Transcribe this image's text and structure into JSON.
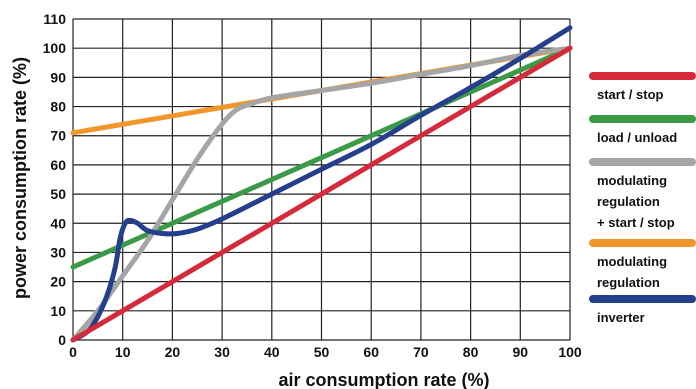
{
  "chart_data": {
    "type": "line",
    "title": "",
    "xlabel": "air consumption rate (%)",
    "ylabel": "power consumption rate (%)",
    "xlim": [
      0,
      100
    ],
    "ylim": [
      0,
      110
    ],
    "xticks": [
      0,
      10,
      20,
      30,
      40,
      50,
      60,
      70,
      80,
      90,
      100
    ],
    "yticks": [
      0,
      10,
      20,
      30,
      40,
      50,
      60,
      70,
      80,
      90,
      100,
      110
    ],
    "grid": true,
    "legend_position": "right",
    "series": [
      {
        "name": "start / stop",
        "color": "#d42a3a",
        "points": [
          [
            0,
            0
          ],
          [
            100,
            100
          ]
        ]
      },
      {
        "name": "load / unload",
        "color": "#3a9a48",
        "points": [
          [
            0,
            25
          ],
          [
            100,
            100
          ]
        ]
      },
      {
        "name": "modulating regulation + start / stop",
        "name_lines": [
          "modulating",
          "regulation",
          "+ start / stop"
        ],
        "color": "#a5a5a5",
        "points": [
          [
            0,
            0
          ],
          [
            5,
            10
          ],
          [
            10,
            22
          ],
          [
            15,
            34
          ],
          [
            20,
            48
          ],
          [
            25,
            62
          ],
          [
            30,
            74
          ],
          [
            33,
            79
          ],
          [
            36,
            81
          ],
          [
            40,
            83
          ],
          [
            50,
            85.5
          ],
          [
            60,
            88
          ],
          [
            70,
            91
          ],
          [
            80,
            94
          ],
          [
            90,
            97.5
          ],
          [
            100,
            100
          ]
        ]
      },
      {
        "name": "modulating regulation",
        "name_lines": [
          "modulating",
          "regulation"
        ],
        "color": "#f0962a",
        "points": [
          [
            0,
            71
          ],
          [
            100,
            100
          ]
        ]
      },
      {
        "name": "inverter",
        "color": "#243f8c",
        "points": [
          [
            0,
            0
          ],
          [
            3,
            3
          ],
          [
            5,
            8
          ],
          [
            7,
            16
          ],
          [
            8.5,
            25
          ],
          [
            9.5,
            35
          ],
          [
            10.5,
            40
          ],
          [
            11.5,
            41
          ],
          [
            13,
            40
          ],
          [
            15,
            37.5
          ],
          [
            18,
            36.5
          ],
          [
            21,
            36.5
          ],
          [
            25,
            38
          ],
          [
            30,
            41.5
          ],
          [
            40,
            50
          ],
          [
            50,
            58.5
          ],
          [
            60,
            67
          ],
          [
            70,
            77
          ],
          [
            80,
            86.5
          ],
          [
            90,
            96.5
          ],
          [
            100,
            107
          ]
        ]
      }
    ]
  }
}
